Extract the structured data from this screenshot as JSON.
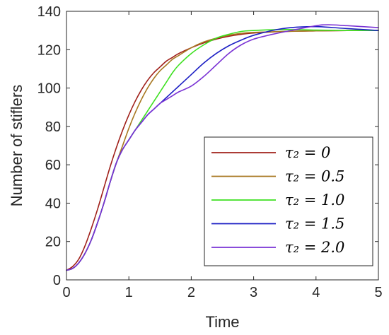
{
  "chart_data": {
    "type": "line",
    "xlabel": "Time",
    "ylabel": "Number of stiflers",
    "xlim": [
      0,
      5
    ],
    "ylim": [
      0,
      140
    ],
    "xticks": [
      "0",
      "1",
      "2",
      "3",
      "4",
      "5"
    ],
    "yticks": [
      "0",
      "20",
      "40",
      "60",
      "80",
      "100",
      "120",
      "140"
    ],
    "grid": false,
    "legend_position": "bottom-right",
    "series": [
      {
        "name": "τ₂ = 0",
        "color": "#a0201a",
        "points": [
          [
            0,
            5
          ],
          [
            0.1,
            7
          ],
          [
            0.2,
            11
          ],
          [
            0.3,
            18
          ],
          [
            0.4,
            27
          ],
          [
            0.5,
            37
          ],
          [
            0.6,
            48
          ],
          [
            0.7,
            59
          ],
          [
            0.8,
            69
          ],
          [
            0.9,
            78
          ],
          [
            1.0,
            86
          ],
          [
            1.1,
            93
          ],
          [
            1.2,
            99
          ],
          [
            1.3,
            104
          ],
          [
            1.4,
            108
          ],
          [
            1.5,
            111
          ],
          [
            1.6,
            114
          ],
          [
            1.7,
            116
          ],
          [
            1.8,
            118
          ],
          [
            2.0,
            121
          ],
          [
            2.2,
            123.5
          ],
          [
            2.4,
            125.5
          ],
          [
            2.6,
            127
          ],
          [
            2.8,
            128
          ],
          [
            3.0,
            128.7
          ],
          [
            3.5,
            129.5
          ],
          [
            4.0,
            129.8
          ],
          [
            4.5,
            130
          ],
          [
            5.0,
            130
          ]
        ]
      },
      {
        "name": "τ₂ = 0.5",
        "color": "#a87822",
        "points": [
          [
            0,
            5
          ],
          [
            0.1,
            6
          ],
          [
            0.2,
            9
          ],
          [
            0.3,
            14
          ],
          [
            0.4,
            21
          ],
          [
            0.5,
            30
          ],
          [
            0.6,
            40
          ],
          [
            0.7,
            51
          ],
          [
            0.8,
            61
          ],
          [
            0.9,
            70
          ],
          [
            1.0,
            79
          ],
          [
            1.1,
            87
          ],
          [
            1.2,
            94
          ],
          [
            1.3,
            100
          ],
          [
            1.4,
            105
          ],
          [
            1.5,
            109
          ],
          [
            1.6,
            112
          ],
          [
            1.7,
            115
          ],
          [
            1.8,
            117
          ],
          [
            2.0,
            121
          ],
          [
            2.2,
            124
          ],
          [
            2.4,
            126
          ],
          [
            2.6,
            127.5
          ],
          [
            2.8,
            128.5
          ],
          [
            3.0,
            129
          ],
          [
            3.5,
            129.5
          ],
          [
            4.0,
            129.8
          ],
          [
            4.5,
            130
          ],
          [
            5.0,
            130
          ]
        ]
      },
      {
        "name": "τ₂ = 1.0",
        "color": "#3de020",
        "points": [
          [
            0,
            5
          ],
          [
            0.1,
            6
          ],
          [
            0.2,
            9
          ],
          [
            0.3,
            14
          ],
          [
            0.4,
            21
          ],
          [
            0.5,
            30
          ],
          [
            0.6,
            40
          ],
          [
            0.7,
            51
          ],
          [
            0.8,
            61
          ],
          [
            0.9,
            68
          ],
          [
            1.0,
            73
          ],
          [
            1.1,
            78
          ],
          [
            1.2,
            83
          ],
          [
            1.3,
            88
          ],
          [
            1.4,
            93
          ],
          [
            1.5,
            98
          ],
          [
            1.6,
            103
          ],
          [
            1.7,
            108
          ],
          [
            1.8,
            112
          ],
          [
            2.0,
            118
          ],
          [
            2.2,
            122.5
          ],
          [
            2.4,
            126
          ],
          [
            2.6,
            128
          ],
          [
            2.8,
            129.5
          ],
          [
            3.0,
            130
          ],
          [
            3.5,
            130.5
          ],
          [
            4.0,
            130.2
          ],
          [
            4.5,
            130
          ],
          [
            5.0,
            130
          ]
        ]
      },
      {
        "name": "τ₂ = 1.5",
        "color": "#1c1fc4",
        "points": [
          [
            0,
            5
          ],
          [
            0.1,
            6
          ],
          [
            0.2,
            9
          ],
          [
            0.3,
            14
          ],
          [
            0.4,
            21
          ],
          [
            0.5,
            30
          ],
          [
            0.6,
            40
          ],
          [
            0.7,
            51
          ],
          [
            0.8,
            61
          ],
          [
            0.9,
            68
          ],
          [
            1.0,
            73
          ],
          [
            1.1,
            78
          ],
          [
            1.2,
            82
          ],
          [
            1.3,
            86
          ],
          [
            1.4,
            89
          ],
          [
            1.5,
            92
          ],
          [
            1.6,
            95
          ],
          [
            1.7,
            98
          ],
          [
            1.8,
            101
          ],
          [
            2.0,
            107
          ],
          [
            2.2,
            113
          ],
          [
            2.4,
            118
          ],
          [
            2.6,
            122
          ],
          [
            2.8,
            125
          ],
          [
            3.0,
            127.5
          ],
          [
            3.3,
            130
          ],
          [
            3.6,
            131.5
          ],
          [
            4.0,
            132
          ],
          [
            4.5,
            131
          ],
          [
            5.0,
            130
          ]
        ]
      },
      {
        "name": "τ₂ = 2.0",
        "color": "#7a32d4",
        "points": [
          [
            0,
            5
          ],
          [
            0.1,
            6
          ],
          [
            0.2,
            9
          ],
          [
            0.3,
            14
          ],
          [
            0.4,
            21
          ],
          [
            0.5,
            30
          ],
          [
            0.6,
            40
          ],
          [
            0.7,
            51
          ],
          [
            0.8,
            61
          ],
          [
            0.9,
            68
          ],
          [
            1.0,
            73
          ],
          [
            1.1,
            78
          ],
          [
            1.2,
            82
          ],
          [
            1.3,
            86
          ],
          [
            1.4,
            89
          ],
          [
            1.5,
            92
          ],
          [
            1.6,
            94
          ],
          [
            1.7,
            96
          ],
          [
            1.8,
            98
          ],
          [
            2.0,
            101
          ],
          [
            2.2,
            106
          ],
          [
            2.4,
            112
          ],
          [
            2.6,
            118
          ],
          [
            2.8,
            122.5
          ],
          [
            3.0,
            125.5
          ],
          [
            3.3,
            128
          ],
          [
            3.6,
            130
          ],
          [
            4.0,
            132.5
          ],
          [
            4.2,
            133
          ],
          [
            4.5,
            132.5
          ],
          [
            5.0,
            131.5
          ]
        ]
      }
    ]
  }
}
